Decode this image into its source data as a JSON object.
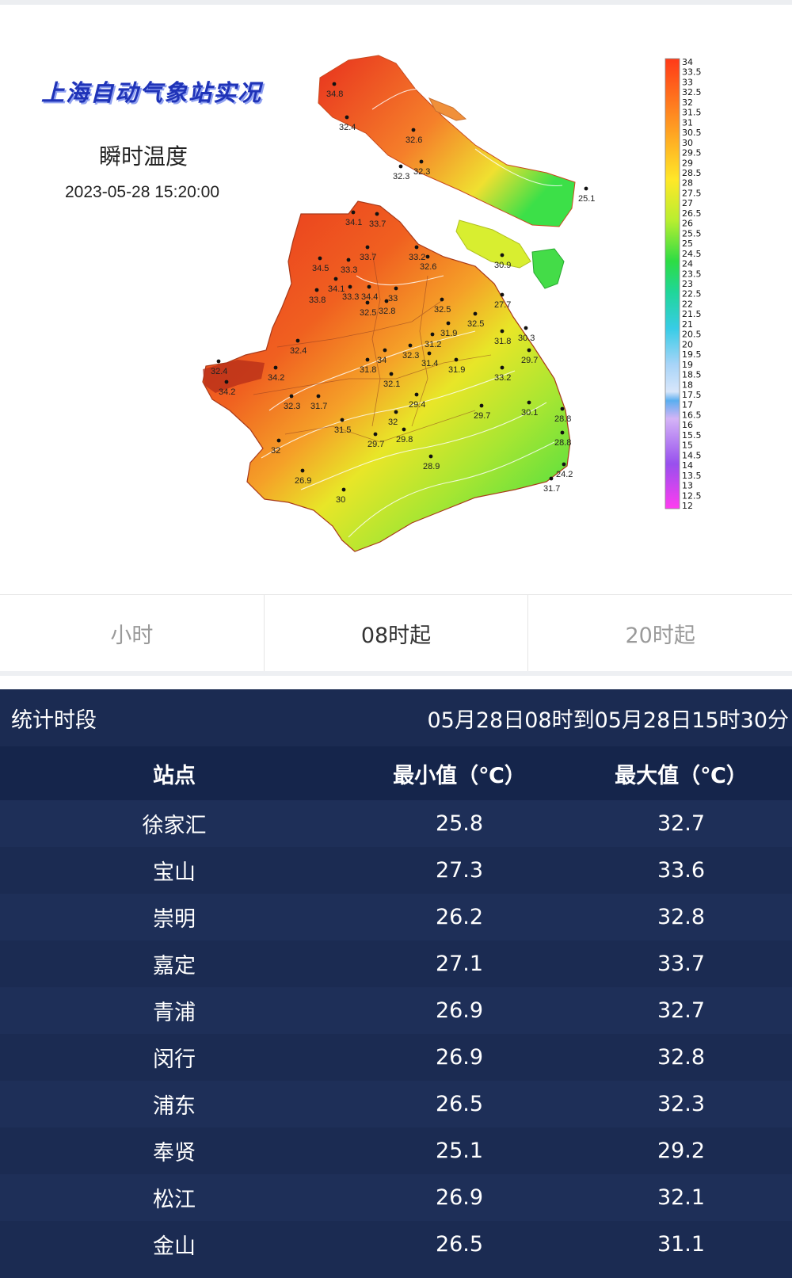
{
  "map": {
    "title": "上海自动气象站实况",
    "subtitle": "瞬时温度",
    "timestamp": "2023-05-28 15:20:00",
    "station_readings": [
      "34.8",
      "32.4",
      "32.6",
      "32.3",
      "32.3",
      "25.1",
      "34.1",
      "33.7",
      "33.7",
      "33.2",
      "32.6",
      "30.9",
      "34.5",
      "33.3",
      "34.1",
      "33.3",
      "33.8",
      "34.4",
      "33",
      "32.5",
      "32.8",
      "27.7",
      "32.5",
      "31.9",
      "32.5",
      "31.8",
      "30.3",
      "31.2",
      "32.3",
      "31.4",
      "29.7",
      "32.4",
      "34",
      "31.8",
      "31.9",
      "33.2",
      "32.1",
      "32.4",
      "34.2",
      "34.2",
      "32.3",
      "31.7",
      "29.4",
      "30.1",
      "29.7",
      "28.8",
      "31.5",
      "32",
      "29.7",
      "29.8",
      "28.8",
      "32",
      "28.9",
      "24.2",
      "31.7",
      "26.9",
      "30"
    ],
    "legend_ticks": [
      "34",
      "33.5",
      "33",
      "32.5",
      "32",
      "31.5",
      "31",
      "30.5",
      "30",
      "29.5",
      "29",
      "28.5",
      "28",
      "27.5",
      "27",
      "26.5",
      "26",
      "25.5",
      "25",
      "24.5",
      "24",
      "23.5",
      "23",
      "22.5",
      "22",
      "21.5",
      "21",
      "20.5",
      "20",
      "19.5",
      "19",
      "18.5",
      "18",
      "17.5",
      "17",
      "16.5",
      "16",
      "15.5",
      "15",
      "14.5",
      "14",
      "13.5",
      "13",
      "12.5",
      "12"
    ],
    "legend_colors": [
      "#ff4a1a",
      "#ff7a1a",
      "#ff9a2a",
      "#ffc02a",
      "#ffe82a",
      "#c8f030",
      "#7ae638",
      "#2ddc44",
      "#20d08a",
      "#2ed4c0",
      "#3ccce4",
      "#6cc0f4",
      "#a8d4f8",
      "#5aaef0",
      "#c9a8f4",
      "#a868ef",
      "#8840ec",
      "#ff3cf0"
    ]
  },
  "tabs": [
    {
      "label": "小时",
      "active": false
    },
    {
      "label": "08时起",
      "active": true
    },
    {
      "label": "20时起",
      "active": false
    }
  ],
  "stats": {
    "period_label": "统计时段",
    "period_value": "05月28日08时到05月28日15时30分",
    "headers": [
      "站点",
      "最小值（℃）",
      "最大值（℃）"
    ],
    "rows": [
      {
        "station": "徐家汇",
        "min": "25.8",
        "max": "32.7"
      },
      {
        "station": "宝山",
        "min": "27.3",
        "max": "33.6"
      },
      {
        "station": "崇明",
        "min": "26.2",
        "max": "32.8"
      },
      {
        "station": "嘉定",
        "min": "27.1",
        "max": "33.7"
      },
      {
        "station": "青浦",
        "min": "26.9",
        "max": "32.7"
      },
      {
        "station": "闵行",
        "min": "26.9",
        "max": "32.8"
      },
      {
        "station": "浦东",
        "min": "26.5",
        "max": "32.3"
      },
      {
        "station": "奉贤",
        "min": "25.1",
        "max": "29.2"
      },
      {
        "station": "松江",
        "min": "26.9",
        "max": "32.1"
      },
      {
        "station": "金山",
        "min": "26.5",
        "max": "31.1"
      }
    ]
  }
}
